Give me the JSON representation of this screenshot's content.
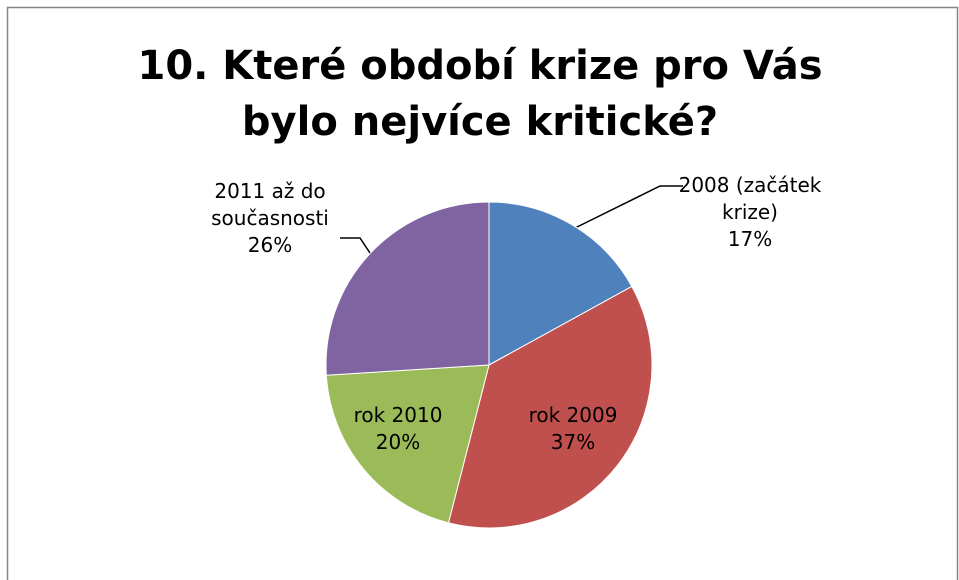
{
  "chart_data": {
    "type": "pie",
    "title": "10. Které období krize pro Vás bylo nejvíce kritické?",
    "categories": [
      "2008 (začátek krize)",
      "rok 2009",
      "rok 2010",
      "2011 až do současnosti"
    ],
    "values": [
      17,
      37,
      20,
      26
    ],
    "value_labels": [
      "17%",
      "37%",
      "20%",
      "26%"
    ],
    "colors": [
      "#4f81bd",
      "#c0504d",
      "#9bbb59",
      "#8064a2"
    ]
  }
}
